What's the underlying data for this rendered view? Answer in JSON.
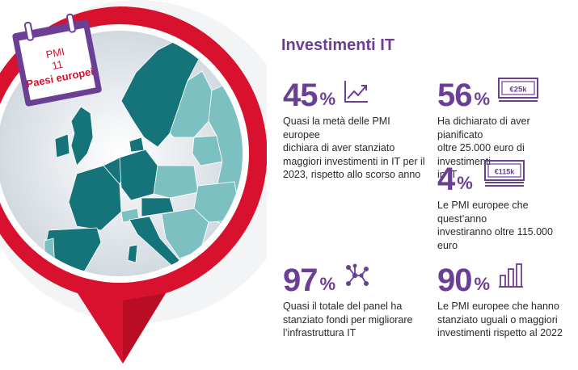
{
  "section_title": "Investimenti IT",
  "calendar": {
    "line1": "PMI",
    "line2": "11",
    "line3": "Paesi europei"
  },
  "stats": [
    {
      "value": "45",
      "unit": "%",
      "icon": "trend-up-icon",
      "lines": [
        "Quasi la metà delle PMI europee",
        "dichiara di aver stanziato",
        "maggiori investimenti in IT per il",
        "2023, rispetto allo scorso anno"
      ]
    },
    {
      "value": "56",
      "unit": "%",
      "icon": "banknote-icon",
      "icon_label": "€25k",
      "lines": [
        "Ha dichiarato di aver pianificato",
        "oltre 25.000 euro di investimenti",
        "in IT"
      ]
    },
    {
      "value": "4",
      "unit": "%",
      "icon": "banknote-stack-icon",
      "icon_label": "€115k",
      "lines": [
        "Le PMI europee che quest’anno",
        "investiranno oltre 115.000 euro"
      ]
    },
    {
      "value": "97",
      "unit": "%",
      "icon": "network-icon",
      "lines": [
        "Quasi il totale del panel ha",
        "stanziato fondi per migliorare",
        "l’infrastruttura IT"
      ]
    },
    {
      "value": "90",
      "unit": "%",
      "icon": "bar-chart-icon",
      "lines": [
        "Le PMI europee che hanno",
        "stanziato uguali o maggiori",
        "investimenti rispetto al 2022"
      ]
    }
  ],
  "colors": {
    "accent": "#6b3f94",
    "pin_red": "#d8112e",
    "pin_dark": "#a50c22",
    "map_dark": "#14747a",
    "map_light": "#7cc0c1",
    "sea": "#dfe5ea"
  }
}
